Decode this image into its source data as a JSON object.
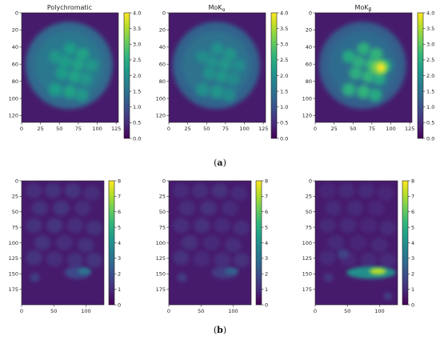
{
  "figure": {
    "row_labels": [
      {
        "open": "(",
        "letter": "a",
        "close": ")"
      },
      {
        "open": "(",
        "letter": "b",
        "close": ")"
      }
    ]
  },
  "colors": {
    "colormap": "viridis",
    "stops": [
      "#440154",
      "#482878",
      "#3e4989",
      "#31688e",
      "#26828e",
      "#1f9e89",
      "#35b779",
      "#6ece58",
      "#b5de2b",
      "#fde725"
    ]
  },
  "chart_data": [
    {
      "type": "heatmap",
      "row": "a",
      "title_base": "Polychromatic",
      "title_sub": "",
      "shape": "disk",
      "cols": 128,
      "rows": 128,
      "xticks": [
        "0",
        "25",
        "50",
        "75",
        "100",
        "125"
      ],
      "yticks": [
        "0",
        "20",
        "40",
        "60",
        "80",
        "100",
        "120"
      ],
      "colorbar": {
        "min": 0,
        "max": 4,
        "ticks": [
          "0.0",
          "0.5",
          "1.0",
          "1.5",
          "2.0",
          "2.5",
          "3.0",
          "3.5",
          "4.0"
        ]
      },
      "values": {
        "background": 0.3,
        "disk_mean": 1.6,
        "central_max": 2.3,
        "hot_spot_max": 2.3
      }
    },
    {
      "type": "heatmap",
      "row": "a",
      "title_base": "MoK",
      "title_sub": "α",
      "shape": "disk",
      "cols": 128,
      "rows": 128,
      "xticks": [
        "0",
        "25",
        "50",
        "75",
        "100",
        "125"
      ],
      "yticks": [
        "0",
        "20",
        "40",
        "60",
        "80",
        "100",
        "120"
      ],
      "colorbar": {
        "min": 0,
        "max": 4,
        "ticks": [
          "0.0",
          "0.5",
          "1.0",
          "1.5",
          "2.0",
          "2.5",
          "3.0",
          "3.5",
          "4.0"
        ]
      },
      "values": {
        "background": 0.3,
        "disk_mean": 1.5,
        "central_max": 2.1,
        "hot_spot_max": 2.1
      }
    },
    {
      "type": "heatmap",
      "row": "a",
      "title_base": "MoK",
      "title_sub": "β",
      "shape": "disk",
      "cols": 128,
      "rows": 128,
      "xticks": [
        "0",
        "25",
        "50",
        "75",
        "100",
        "125"
      ],
      "yticks": [
        "0",
        "20",
        "40",
        "60",
        "80",
        "100",
        "120"
      ],
      "colorbar": {
        "min": 0,
        "max": 4,
        "ticks": [
          "0.0",
          "0.5",
          "1.0",
          "1.5",
          "2.0",
          "2.5",
          "3.0",
          "3.5",
          "4.0"
        ]
      },
      "values": {
        "background": 0.3,
        "disk_mean": 1.4,
        "central_max": 2.6,
        "hot_spot_max": 4.0
      }
    },
    {
      "type": "heatmap",
      "row": "b",
      "title_base": "",
      "title_sub": "",
      "shape": "rect",
      "cols": 128,
      "rows": 200,
      "xticks": [
        "0",
        "50",
        "100"
      ],
      "yticks": [
        "0",
        "25",
        "50",
        "75",
        "100",
        "125",
        "150",
        "175"
      ],
      "colorbar": {
        "min": 0,
        "max": 8,
        "ticks": [
          "0",
          "1",
          "2",
          "3",
          "4",
          "5",
          "6",
          "7",
          "8"
        ]
      },
      "values": {
        "background": 0.6,
        "upper_blob_mean": 1.2,
        "hot_spot_max": 3.2
      }
    },
    {
      "type": "heatmap",
      "row": "b",
      "title_base": "",
      "title_sub": "",
      "shape": "rect",
      "cols": 128,
      "rows": 200,
      "xticks": [
        "0",
        "50",
        "100"
      ],
      "yticks": [
        "0",
        "25",
        "50",
        "75",
        "100",
        "125",
        "150",
        "175"
      ],
      "colorbar": {
        "min": 0,
        "max": 8,
        "ticks": [
          "0",
          "1",
          "2",
          "3",
          "4",
          "5",
          "6",
          "7",
          "8"
        ]
      },
      "values": {
        "background": 0.6,
        "upper_blob_mean": 1.1,
        "hot_spot_max": 2.6
      }
    },
    {
      "type": "heatmap",
      "row": "b",
      "title_base": "",
      "title_sub": "",
      "shape": "rect",
      "cols": 128,
      "rows": 200,
      "xticks": [
        "0",
        "50",
        "100"
      ],
      "yticks": [
        "0",
        "25",
        "50",
        "75",
        "100",
        "125",
        "150",
        "175"
      ],
      "colorbar": {
        "min": 0,
        "max": 8,
        "ticks": [
          "0",
          "1",
          "2",
          "3",
          "4",
          "5",
          "6",
          "7",
          "8"
        ]
      },
      "values": {
        "background": 0.6,
        "upper_blob_mean": 1.0,
        "hot_spot_max": 7.2
      }
    }
  ]
}
